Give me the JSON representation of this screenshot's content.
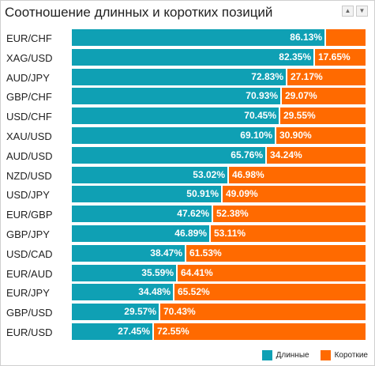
{
  "title": "Соотношение длинных и коротких позиций",
  "colors": {
    "long": "#0fa0b4",
    "short": "#ff6a00"
  },
  "sort_controls": {
    "up_icon": "sort-up-icon",
    "down_icon": "sort-down-icon"
  },
  "legend": {
    "long_label": "Длинные",
    "short_label": "Короткие"
  },
  "chart_data": {
    "type": "bar",
    "orientation": "horizontal-stacked-100",
    "title": "Соотношение длинных и коротких позиций",
    "categories": [
      "EUR/CHF",
      "XAG/USD",
      "AUD/JPY",
      "GBP/CHF",
      "USD/CHF",
      "XAU/USD",
      "AUD/USD",
      "NZD/USD",
      "USD/JPY",
      "EUR/GBP",
      "GBP/JPY",
      "USD/CAD",
      "EUR/AUD",
      "EUR/JPY",
      "GBP/USD",
      "EUR/USD"
    ],
    "series": [
      {
        "name": "Длинные",
        "values": [
          86.13,
          82.35,
          72.83,
          70.93,
          70.45,
          69.1,
          65.76,
          53.02,
          50.91,
          47.62,
          46.89,
          38.47,
          35.59,
          34.48,
          29.57,
          27.45
        ]
      },
      {
        "name": "Короткие",
        "values": [
          13.87,
          17.65,
          27.17,
          29.07,
          29.55,
          30.9,
          34.24,
          46.98,
          49.09,
          52.38,
          53.11,
          61.53,
          64.41,
          65.52,
          70.43,
          72.55
        ]
      }
    ],
    "long_labels": [
      "86.13%",
      "82.35%",
      "72.83%",
      "70.93%",
      "70.45%",
      "69.10%",
      "65.76%",
      "53.02%",
      "50.91%",
      "47.62%",
      "46.89%",
      "38.47%",
      "35.59%",
      "34.48%",
      "29.57%",
      "27.45%"
    ],
    "short_labels": [
      "",
      "17.65%",
      "27.17%",
      "29.07%",
      "29.55%",
      "30.90%",
      "34.24%",
      "46.98%",
      "49.09%",
      "52.38%",
      "53.11%",
      "61.53%",
      "64.41%",
      "65.52%",
      "70.43%",
      "72.55%"
    ],
    "xlim": [
      0,
      100
    ],
    "legend_position": "bottom-right"
  }
}
